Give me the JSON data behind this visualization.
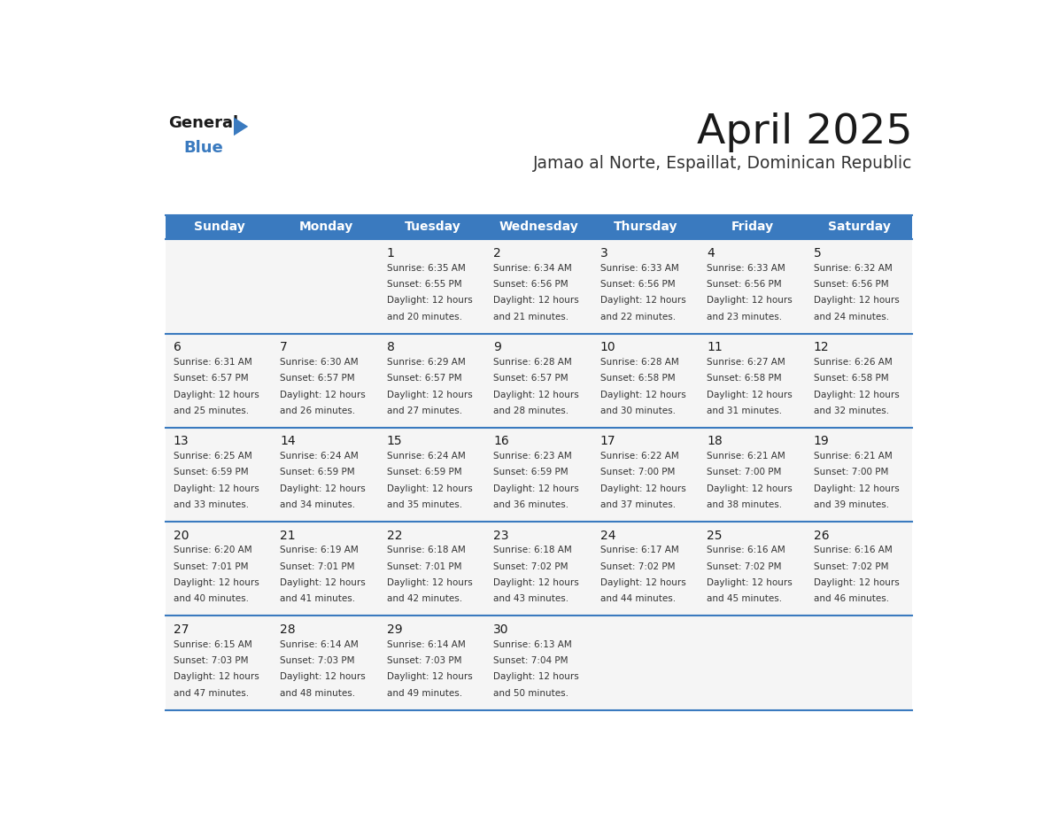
{
  "title": "April 2025",
  "subtitle": "Jamao al Norte, Espaillat, Dominican Republic",
  "days_of_week": [
    "Sunday",
    "Monday",
    "Tuesday",
    "Wednesday",
    "Thursday",
    "Friday",
    "Saturday"
  ],
  "header_bg_color": "#3a7abf",
  "header_text_color": "#ffffff",
  "cell_bg_color": "#f5f5f5",
  "title_color": "#1a1a1a",
  "subtitle_color": "#333333",
  "day_number_color": "#1a1a1a",
  "cell_text_color": "#333333",
  "logo_general_color": "#1a1a1a",
  "logo_blue_color": "#3a7abf",
  "grid_line_color": "#3a7abf",
  "calendar": [
    [
      {
        "day": null,
        "sunrise": null,
        "sunset": null,
        "daylight_min": null
      },
      {
        "day": null,
        "sunrise": null,
        "sunset": null,
        "daylight_min": null
      },
      {
        "day": 1,
        "sunrise": "6:35 AM",
        "sunset": "6:55 PM",
        "daylight_min": 20
      },
      {
        "day": 2,
        "sunrise": "6:34 AM",
        "sunset": "6:56 PM",
        "daylight_min": 21
      },
      {
        "day": 3,
        "sunrise": "6:33 AM",
        "sunset": "6:56 PM",
        "daylight_min": 22
      },
      {
        "day": 4,
        "sunrise": "6:33 AM",
        "sunset": "6:56 PM",
        "daylight_min": 23
      },
      {
        "day": 5,
        "sunrise": "6:32 AM",
        "sunset": "6:56 PM",
        "daylight_min": 24
      }
    ],
    [
      {
        "day": 6,
        "sunrise": "6:31 AM",
        "sunset": "6:57 PM",
        "daylight_min": 25
      },
      {
        "day": 7,
        "sunrise": "6:30 AM",
        "sunset": "6:57 PM",
        "daylight_min": 26
      },
      {
        "day": 8,
        "sunrise": "6:29 AM",
        "sunset": "6:57 PM",
        "daylight_min": 27
      },
      {
        "day": 9,
        "sunrise": "6:28 AM",
        "sunset": "6:57 PM",
        "daylight_min": 28
      },
      {
        "day": 10,
        "sunrise": "6:28 AM",
        "sunset": "6:58 PM",
        "daylight_min": 30
      },
      {
        "day": 11,
        "sunrise": "6:27 AM",
        "sunset": "6:58 PM",
        "daylight_min": 31
      },
      {
        "day": 12,
        "sunrise": "6:26 AM",
        "sunset": "6:58 PM",
        "daylight_min": 32
      }
    ],
    [
      {
        "day": 13,
        "sunrise": "6:25 AM",
        "sunset": "6:59 PM",
        "daylight_min": 33
      },
      {
        "day": 14,
        "sunrise": "6:24 AM",
        "sunset": "6:59 PM",
        "daylight_min": 34
      },
      {
        "day": 15,
        "sunrise": "6:24 AM",
        "sunset": "6:59 PM",
        "daylight_min": 35
      },
      {
        "day": 16,
        "sunrise": "6:23 AM",
        "sunset": "6:59 PM",
        "daylight_min": 36
      },
      {
        "day": 17,
        "sunrise": "6:22 AM",
        "sunset": "7:00 PM",
        "daylight_min": 37
      },
      {
        "day": 18,
        "sunrise": "6:21 AM",
        "sunset": "7:00 PM",
        "daylight_min": 38
      },
      {
        "day": 19,
        "sunrise": "6:21 AM",
        "sunset": "7:00 PM",
        "daylight_min": 39
      }
    ],
    [
      {
        "day": 20,
        "sunrise": "6:20 AM",
        "sunset": "7:01 PM",
        "daylight_min": 40
      },
      {
        "day": 21,
        "sunrise": "6:19 AM",
        "sunset": "7:01 PM",
        "daylight_min": 41
      },
      {
        "day": 22,
        "sunrise": "6:18 AM",
        "sunset": "7:01 PM",
        "daylight_min": 42
      },
      {
        "day": 23,
        "sunrise": "6:18 AM",
        "sunset": "7:02 PM",
        "daylight_min": 43
      },
      {
        "day": 24,
        "sunrise": "6:17 AM",
        "sunset": "7:02 PM",
        "daylight_min": 44
      },
      {
        "day": 25,
        "sunrise": "6:16 AM",
        "sunset": "7:02 PM",
        "daylight_min": 45
      },
      {
        "day": 26,
        "sunrise": "6:16 AM",
        "sunset": "7:02 PM",
        "daylight_min": 46
      }
    ],
    [
      {
        "day": 27,
        "sunrise": "6:15 AM",
        "sunset": "7:03 PM",
        "daylight_min": 47
      },
      {
        "day": 28,
        "sunrise": "6:14 AM",
        "sunset": "7:03 PM",
        "daylight_min": 48
      },
      {
        "day": 29,
        "sunrise": "6:14 AM",
        "sunset": "7:03 PM",
        "daylight_min": 49
      },
      {
        "day": 30,
        "sunrise": "6:13 AM",
        "sunset": "7:04 PM",
        "daylight_min": 50
      },
      {
        "day": null,
        "sunrise": null,
        "sunset": null,
        "daylight_min": null
      },
      {
        "day": null,
        "sunrise": null,
        "sunset": null,
        "daylight_min": null
      },
      {
        "day": null,
        "sunrise": null,
        "sunset": null,
        "daylight_min": null
      }
    ]
  ]
}
